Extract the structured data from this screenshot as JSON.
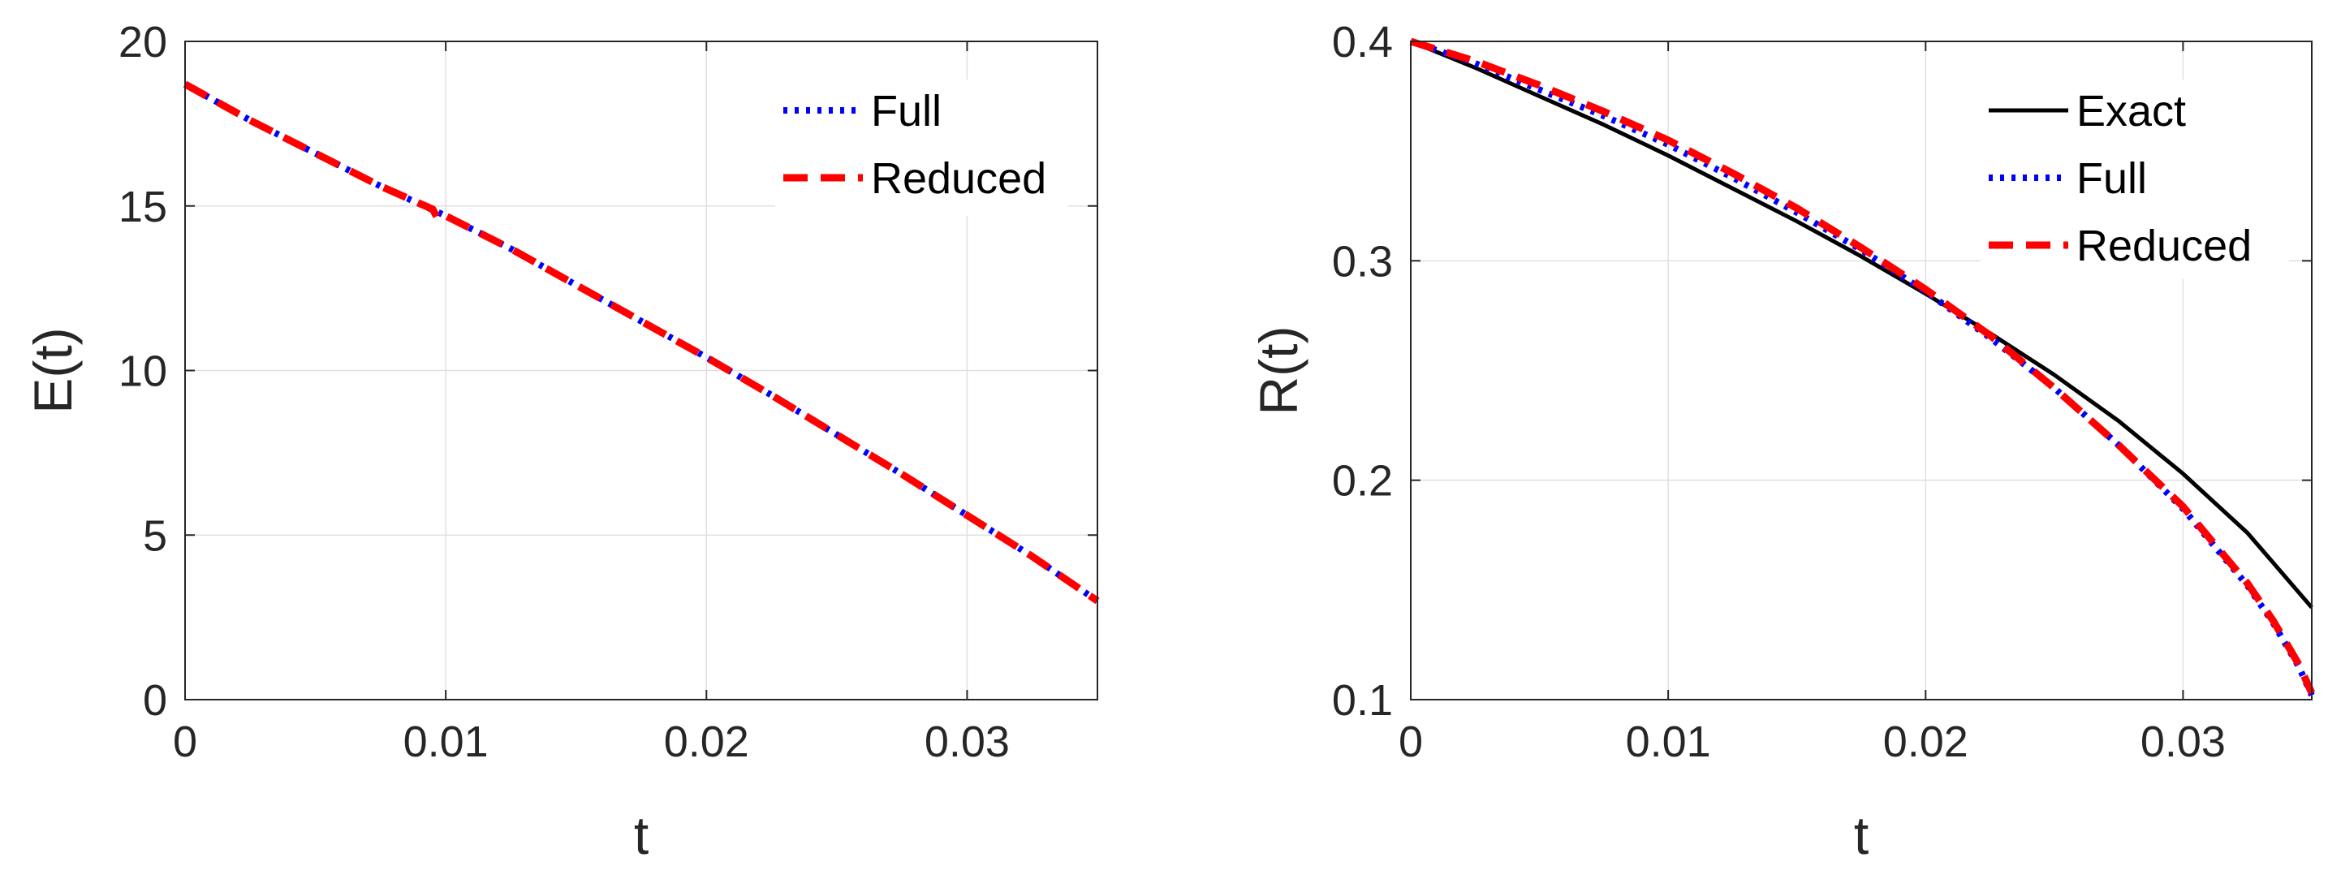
{
  "chart_data": [
    {
      "type": "line",
      "xlabel": "t",
      "ylabel": "E(t)",
      "xlim": [
        0,
        0.035
      ],
      "ylim": [
        0,
        20
      ],
      "xticks": [
        0,
        0.01,
        0.02,
        0.03
      ],
      "xtick_labels": [
        "0",
        "0.01",
        "0.02",
        "0.03"
      ],
      "yticks": [
        0,
        5,
        10,
        15,
        20
      ],
      "ytick_labels": [
        "0",
        "5",
        "10",
        "15",
        "20"
      ],
      "grid": true,
      "legend": "top-right",
      "series": [
        {
          "name": "Full",
          "color": "#0000ff",
          "style": "dotted",
          "x": [
            0,
            0.0025,
            0.005,
            0.0075,
            0.01,
            0.0125,
            0.015,
            0.0175,
            0.02,
            0.0225,
            0.025,
            0.0275,
            0.03,
            0.0325,
            0.035
          ],
          "y": [
            18.7,
            17.6,
            16.6,
            15.6,
            14.7,
            13.7,
            12.6,
            11.5,
            10.4,
            9.25,
            8.05,
            6.85,
            5.6,
            4.35,
            3.0
          ]
        },
        {
          "name": "Reduced",
          "color": "#ff0000",
          "style": "dashed",
          "x": [
            0,
            0.0025,
            0.005,
            0.0075,
            0.0095,
            0.0097,
            0.01,
            0.0125,
            0.015,
            0.0175,
            0.02,
            0.0225,
            0.025,
            0.0275,
            0.03,
            0.0325,
            0.035
          ],
          "y": [
            18.7,
            17.6,
            16.6,
            15.6,
            14.9,
            14.6,
            14.7,
            13.7,
            12.6,
            11.5,
            10.4,
            9.25,
            8.05,
            6.85,
            5.6,
            4.35,
            3.0
          ]
        }
      ]
    },
    {
      "type": "line",
      "xlabel": "t",
      "ylabel": "R(t)",
      "xlim": [
        0,
        0.035
      ],
      "ylim": [
        0.1,
        0.4
      ],
      "xticks": [
        0,
        0.01,
        0.02,
        0.03
      ],
      "xtick_labels": [
        "0",
        "0.01",
        "0.02",
        "0.03"
      ],
      "yticks": [
        0.1,
        0.2,
        0.3,
        0.4
      ],
      "ytick_labels": [
        "0.1",
        "0.2",
        "0.3",
        "0.4"
      ],
      "grid": true,
      "legend": "top-right",
      "series": [
        {
          "name": "Exact",
          "color": "#000000",
          "style": "solid",
          "x": [
            0,
            0.0025,
            0.005,
            0.0075,
            0.01,
            0.0125,
            0.015,
            0.0175,
            0.02,
            0.0225,
            0.025,
            0.0275,
            0.03,
            0.0325,
            0.035
          ],
          "y": [
            0.4,
            0.388,
            0.375,
            0.362,
            0.348,
            0.333,
            0.318,
            0.302,
            0.285,
            0.267,
            0.248,
            0.227,
            0.203,
            0.176,
            0.142
          ]
        },
        {
          "name": "Full",
          "color": "#0000ff",
          "style": "dotted",
          "x": [
            0,
            0.0025,
            0.005,
            0.0075,
            0.01,
            0.0125,
            0.015,
            0.0175,
            0.02,
            0.0225,
            0.025,
            0.0275,
            0.03,
            0.0325,
            0.0335,
            0.0345,
            0.035
          ],
          "y": [
            0.4,
            0.39,
            0.378,
            0.366,
            0.353,
            0.338,
            0.322,
            0.305,
            0.286,
            0.265,
            0.242,
            0.216,
            0.187,
            0.152,
            0.135,
            0.115,
            0.102
          ]
        },
        {
          "name": "Reduced",
          "color": "#ff0000",
          "style": "dashed",
          "x": [
            0,
            0.0025,
            0.005,
            0.0075,
            0.01,
            0.0125,
            0.015,
            0.0175,
            0.02,
            0.0225,
            0.025,
            0.0275,
            0.03,
            0.0325,
            0.0335,
            0.0345,
            0.035
          ],
          "y": [
            0.4,
            0.391,
            0.38,
            0.368,
            0.355,
            0.34,
            0.324,
            0.306,
            0.287,
            0.266,
            0.242,
            0.216,
            0.188,
            0.153,
            0.136,
            0.116,
            0.103
          ]
        }
      ]
    }
  ]
}
